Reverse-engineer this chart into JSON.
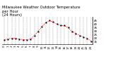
{
  "title": "Milwaukee Weather Outdoor Temperature\nper Hour\n(24 Hours)",
  "hours": [
    0,
    1,
    2,
    3,
    4,
    5,
    6,
    7,
    8,
    9,
    10,
    11,
    12,
    13,
    14,
    15,
    16,
    17,
    18,
    19,
    20,
    21,
    22,
    23
  ],
  "temps": [
    18,
    19,
    20,
    20,
    19,
    18,
    18,
    19,
    24,
    30,
    36,
    42,
    45,
    43,
    40,
    38,
    38,
    35,
    30,
    27,
    24,
    22,
    20,
    16
  ],
  "line_color": "#ff0000",
  "marker_color": "#000000",
  "bg_color": "#ffffff",
  "grid_color": "#888888",
  "ylim": [
    12,
    50
  ],
  "ytick_vals": [
    15,
    20,
    25,
    30,
    35,
    40,
    45
  ],
  "ytick_labels": [
    "15",
    "20",
    "25",
    "30",
    "35",
    "40",
    "45"
  ],
  "title_fontsize": 3.8,
  "tick_fontsize": 3.0,
  "line_width": 0.7,
  "marker_size": 1.0
}
